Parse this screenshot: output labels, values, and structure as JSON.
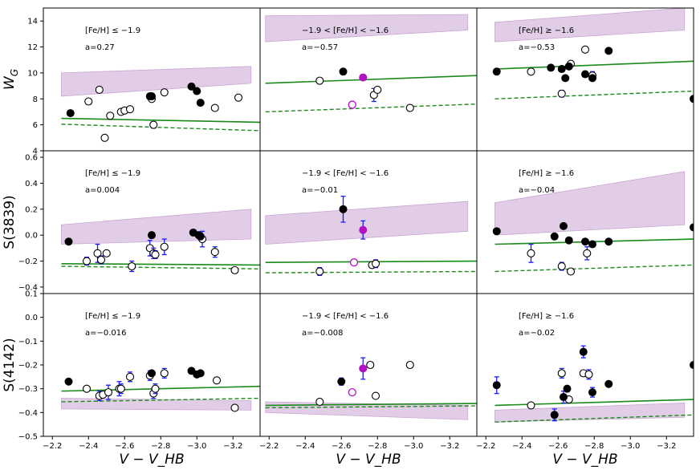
{
  "chart_data": {
    "type": "scatter",
    "xlabel": "V − V_HB",
    "colors": {
      "green": "#1a8a1a",
      "band": "#c9a6d2",
      "black": "#000000",
      "open": "#1a1aff",
      "magenta": "#b012c0"
    },
    "columns": [
      {
        "xlim": [
          -2.15,
          -3.35
        ],
        "xticks": [
          -2.2,
          -2.4,
          -2.6,
          -2.8,
          -3.0,
          -3.2
        ],
        "xtick_labels": [
          "−2.2",
          "−2.4",
          "−2.6",
          "−2.8",
          "−3.0",
          "−3.2"
        ]
      },
      {
        "xlim": [
          -2.15,
          -3.35
        ],
        "xticks": [
          -2.2,
          -2.4,
          -2.6,
          -2.8,
          -3.0,
          -3.2
        ],
        "xtick_labels": [
          "−2.2",
          "−2.4",
          "−2.6",
          "−2.8",
          "−3.0",
          "−3.2"
        ]
      },
      {
        "xlim": [
          -2.15,
          -3.35
        ],
        "xticks": [
          -2.2,
          -2.4,
          -2.6,
          -2.8,
          -3.0,
          -3.2
        ],
        "xtick_labels": [
          "−2.2",
          "−2.4",
          "−2.6",
          "−2.8",
          "−3.0",
          "−3.2"
        ]
      }
    ],
    "rows": [
      {
        "ylabel_main": "W",
        "ylabel_sub": "G",
        "ylim": [
          4,
          15
        ],
        "yticks": [
          4,
          6,
          8,
          10,
          12,
          14
        ],
        "ytick_labels": [
          "4",
          "6",
          "8",
          "10",
          "12",
          "14"
        ]
      },
      {
        "ylabel_main": "S(3839)",
        "ylabel_sub": "",
        "ylim": [
          -0.45,
          0.65
        ],
        "yticks": [
          -0.4,
          -0.2,
          0.0,
          0.2,
          0.4,
          0.6
        ],
        "ytick_labels": [
          "−0.4",
          "−0.2",
          "0.0",
          "0.2",
          "0.4",
          "0.6"
        ]
      },
      {
        "ylabel_main": "S(4142)",
        "ylabel_sub": "",
        "ylim": [
          -0.5,
          0.1
        ],
        "yticks": [
          -0.5,
          -0.4,
          -0.3,
          -0.2,
          -0.1,
          0.0,
          0.1
        ],
        "ytick_labels": [
          "−0.5",
          "−0.4",
          "−0.3",
          "−0.2",
          "−0.1",
          "0.0",
          "0.1"
        ]
      }
    ],
    "panels": [
      {
        "row": 0,
        "col": 0,
        "label": "[Fe/H] ≤ −1.9",
        "slope": "a=0.27",
        "band": [
          [
            -2.25,
            8.2,
            10.0
          ],
          [
            -3.3,
            9.2,
            10.5
          ]
        ],
        "solid": [
          [
            -2.25,
            6.5
          ],
          [
            -3.35,
            6.2
          ]
        ],
        "dashed": [
          [
            -2.25,
            6.05
          ],
          [
            -3.35,
            5.55
          ]
        ],
        "filled": [
          [
            -2.3,
            6.9
          ],
          [
            -2.74,
            8.2
          ],
          [
            -2.75,
            8.2
          ],
          [
            -2.97,
            8.95
          ],
          [
            -3.0,
            8.6
          ],
          [
            -3.02,
            7.7
          ]
        ],
        "open": [
          [
            -2.4,
            7.8,
            0.2
          ],
          [
            -2.46,
            8.7,
            0.15
          ],
          [
            -2.49,
            5.0,
            0.15
          ],
          [
            -2.52,
            6.7,
            0.2
          ],
          [
            -2.58,
            7.0,
            0.2
          ],
          [
            -2.6,
            7.1,
            0.2
          ],
          [
            -2.63,
            7.2,
            0.2
          ],
          [
            -2.75,
            8.0,
            0.2
          ],
          [
            -2.76,
            6.0,
            0.25
          ],
          [
            -2.82,
            8.5,
            0.2
          ],
          [
            -3.1,
            7.3,
            0.1
          ],
          [
            -3.23,
            8.1,
            0.2
          ]
        ],
        "magenta_filled": [],
        "magenta_open": []
      },
      {
        "row": 0,
        "col": 1,
        "label": "−1.9 < [Fe/H] < −1.6",
        "slope": "a=−0.57",
        "band": [
          [
            -2.18,
            12.4,
            14.4
          ],
          [
            -3.3,
            13.3,
            14.5
          ]
        ],
        "solid": [
          [
            -2.18,
            9.2
          ],
          [
            -3.35,
            9.8
          ]
        ],
        "dashed": [
          [
            -2.18,
            7.0
          ],
          [
            -3.35,
            7.6
          ]
        ],
        "filled": [
          [
            -2.61,
            10.1
          ]
        ],
        "open": [
          [
            -2.48,
            9.4,
            0.1
          ],
          [
            -2.78,
            8.3,
            0.5
          ],
          [
            -2.8,
            8.7,
            0.2
          ],
          [
            -2.98,
            7.3,
            0.2
          ]
        ],
        "magenta_filled": [
          [
            -2.72,
            9.65,
            0.15
          ]
        ],
        "magenta_open": [
          [
            -2.66,
            7.55,
            0.1
          ]
        ]
      },
      {
        "row": 0,
        "col": 2,
        "label": "[Fe/H] ≥ −1.6",
        "slope": "a=−0.53",
        "band": [
          [
            -2.25,
            12.4,
            13.9
          ],
          [
            -3.3,
            13.3,
            15.0
          ]
        ],
        "solid": [
          [
            -2.25,
            10.3
          ],
          [
            -3.35,
            10.9
          ]
        ],
        "dashed": [
          [
            -2.25,
            8.0
          ],
          [
            -3.35,
            8.6
          ]
        ],
        "filled": [
          [
            -2.26,
            10.1
          ],
          [
            -2.56,
            10.4
          ],
          [
            -2.62,
            10.3
          ],
          [
            -2.64,
            9.6
          ],
          [
            -2.66,
            10.5
          ],
          [
            -2.75,
            9.9
          ],
          [
            -2.79,
            9.6
          ],
          [
            -2.88,
            11.7
          ],
          [
            -3.35,
            8.0
          ]
        ],
        "open": [
          [
            -2.45,
            10.1,
            0.1
          ],
          [
            -2.62,
            8.4,
            0.25
          ],
          [
            -2.67,
            10.7,
            0.15
          ],
          [
            -2.75,
            11.8,
            0.2
          ],
          [
            -2.79,
            9.8,
            0.3
          ]
        ],
        "magenta_filled": [],
        "magenta_open": []
      },
      {
        "row": 1,
        "col": 0,
        "label": "[Fe/H] ≤ −1.9",
        "slope": "a=0.004",
        "band": [
          [
            -2.25,
            -0.07,
            0.08
          ],
          [
            -3.3,
            -0.03,
            0.2
          ]
        ],
        "solid": [
          [
            -2.25,
            -0.22
          ],
          [
            -3.35,
            -0.23
          ]
        ],
        "dashed": [
          [
            -2.25,
            -0.24
          ],
          [
            -3.35,
            -0.26
          ]
        ],
        "filled": [
          [
            -2.29,
            -0.05
          ],
          [
            -2.75,
            0.0
          ],
          [
            -2.98,
            0.02
          ],
          [
            -3.01,
            0.0
          ],
          [
            -3.02,
            -0.01
          ]
        ],
        "open": [
          [
            -2.39,
            -0.2,
            0.03
          ],
          [
            -2.45,
            -0.14,
            0.07
          ],
          [
            -2.47,
            -0.19,
            0.03
          ],
          [
            -2.5,
            -0.14,
            0.02
          ],
          [
            -2.64,
            -0.24,
            0.04
          ],
          [
            -2.74,
            -0.1,
            0.06
          ],
          [
            -2.76,
            -0.14,
            0.04
          ],
          [
            -2.77,
            -0.15,
            0.03
          ],
          [
            -2.82,
            -0.09,
            0.06
          ],
          [
            -3.03,
            -0.03,
            0.06
          ],
          [
            -3.1,
            -0.13,
            0.04
          ],
          [
            -3.21,
            -0.27,
            0.02
          ]
        ],
        "magenta_filled": [],
        "magenta_open": []
      },
      {
        "row": 1,
        "col": 1,
        "label": "−1.9 < [Fe/H] < −1.6",
        "slope": "a=−0.01",
        "band": [
          [
            -2.18,
            -0.07,
            0.15
          ],
          [
            -3.3,
            0.03,
            0.26
          ]
        ],
        "solid": [
          [
            -2.18,
            -0.21
          ],
          [
            -3.35,
            -0.2
          ]
        ],
        "dashed": [
          [
            -2.18,
            -0.29
          ],
          [
            -3.35,
            -0.28
          ]
        ],
        "filled": [
          [
            -2.61,
            0.2,
            0.1
          ]
        ],
        "open": [
          [
            -2.48,
            -0.28,
            0.03
          ],
          [
            -2.77,
            -0.23,
            0.02
          ],
          [
            -2.79,
            -0.22,
            0.03
          ]
        ],
        "magenta_filled": [
          [
            -2.72,
            0.04,
            0.07
          ]
        ],
        "magenta_open": [
          [
            -2.67,
            -0.21,
            0.01
          ]
        ]
      },
      {
        "row": 1,
        "col": 2,
        "label": "[Fe/H] ≥ −1.6",
        "slope": "a=−0.04",
        "band": [
          [
            -2.25,
            0.0,
            0.25
          ],
          [
            -3.3,
            0.08,
            0.49
          ]
        ],
        "solid": [
          [
            -2.25,
            -0.07
          ],
          [
            -3.35,
            -0.03
          ]
        ],
        "dashed": [
          [
            -2.25,
            -0.28
          ],
          [
            -3.35,
            -0.23
          ]
        ],
        "filled": [
          [
            -2.26,
            0.03
          ],
          [
            -2.58,
            -0.01
          ],
          [
            -2.63,
            0.07
          ],
          [
            -2.66,
            -0.04
          ],
          [
            -2.75,
            -0.05
          ],
          [
            -2.79,
            -0.07
          ],
          [
            -2.88,
            -0.05
          ],
          [
            -3.35,
            0.06
          ]
        ],
        "open": [
          [
            -2.45,
            -0.14,
            0.07
          ],
          [
            -2.62,
            -0.24,
            0.03
          ],
          [
            -2.67,
            -0.28,
            0.02
          ],
          [
            -2.76,
            -0.14,
            0.05
          ]
        ],
        "magenta_filled": [],
        "magenta_open": []
      },
      {
        "row": 2,
        "col": 0,
        "label": "[Fe/H] ≤ −1.9",
        "slope": "a=−0.016",
        "band": [
          [
            -2.25,
            -0.385,
            -0.34
          ],
          [
            -3.3,
            -0.39,
            -0.35
          ]
        ],
        "solid": [
          [
            -2.25,
            -0.31
          ],
          [
            -3.35,
            -0.29
          ]
        ],
        "dashed": [
          [
            -2.25,
            -0.355
          ],
          [
            -3.35,
            -0.34
          ]
        ],
        "filled": [
          [
            -2.29,
            -0.27
          ],
          [
            -2.75,
            -0.235
          ],
          [
            -2.97,
            -0.225
          ],
          [
            -3.0,
            -0.24
          ],
          [
            -3.02,
            -0.235
          ]
        ],
        "open": [
          [
            -2.39,
            -0.3,
            0.01
          ],
          [
            -2.46,
            -0.33,
            0.02
          ],
          [
            -2.48,
            -0.325,
            0.01
          ],
          [
            -2.51,
            -0.315,
            0.03
          ],
          [
            -2.57,
            -0.3,
            0.03
          ],
          [
            -2.58,
            -0.3,
            0.02
          ],
          [
            -2.63,
            -0.25,
            0.02
          ],
          [
            -2.74,
            -0.245,
            0.02
          ],
          [
            -2.76,
            -0.32,
            0.02
          ],
          [
            -2.77,
            -0.3,
            0.02
          ],
          [
            -2.82,
            -0.235,
            0.02
          ],
          [
            -3.11,
            -0.265,
            0.01
          ],
          [
            -3.21,
            -0.38,
            0.01
          ]
        ],
        "magenta_filled": [],
        "magenta_open": []
      },
      {
        "row": 2,
        "col": 1,
        "label": "−1.9 < [Fe/H] < −1.6",
        "slope": "a=−0.008",
        "band": [
          [
            -2.18,
            -0.4,
            -0.355
          ],
          [
            -3.3,
            -0.43,
            -0.37
          ]
        ],
        "solid": [
          [
            -2.18,
            -0.37
          ],
          [
            -3.35,
            -0.362
          ]
        ],
        "dashed": [
          [
            -2.18,
            -0.38
          ],
          [
            -3.35,
            -0.372
          ]
        ],
        "filled": [
          [
            -2.6,
            -0.27,
            0.015
          ]
        ],
        "open": [
          [
            -2.48,
            -0.355,
            0.005
          ],
          [
            -2.76,
            -0.2,
            0.01
          ],
          [
            -2.79,
            -0.33,
            0.01
          ],
          [
            -2.98,
            -0.2,
            0.005
          ]
        ],
        "magenta_filled": [
          [
            -2.72,
            -0.215,
            0.045
          ]
        ],
        "magenta_open": [
          [
            -2.66,
            -0.315,
            0.005
          ]
        ]
      },
      {
        "row": 2,
        "col": 2,
        "label": "[Fe/H] ≥ −1.6",
        "slope": "a=−0.02",
        "band": [
          [
            -2.25,
            -0.44,
            -0.39
          ],
          [
            -3.3,
            -0.42,
            -0.36
          ]
        ],
        "solid": [
          [
            -2.25,
            -0.37
          ],
          [
            -3.35,
            -0.345
          ]
        ],
        "dashed": [
          [
            -2.25,
            -0.44
          ],
          [
            -3.35,
            -0.41
          ]
        ],
        "filled": [
          [
            -2.26,
            -0.285,
            0.035
          ],
          [
            -2.58,
            -0.41,
            0.025
          ],
          [
            -2.63,
            -0.335,
            0.025
          ],
          [
            -2.65,
            -0.3
          ],
          [
            -2.74,
            -0.145,
            0.025
          ],
          [
            -2.79,
            -0.315,
            0.02
          ],
          [
            -2.88,
            -0.28
          ],
          [
            -3.35,
            -0.2
          ]
        ],
        "open": [
          [
            -2.45,
            -0.37,
            0.01
          ],
          [
            -2.62,
            -0.235,
            0.02
          ],
          [
            -2.66,
            -0.345,
            0.01
          ],
          [
            -2.74,
            -0.235,
            0.01
          ],
          [
            -2.77,
            -0.24,
            0.02
          ]
        ],
        "magenta_filled": [],
        "magenta_open": []
      }
    ]
  }
}
